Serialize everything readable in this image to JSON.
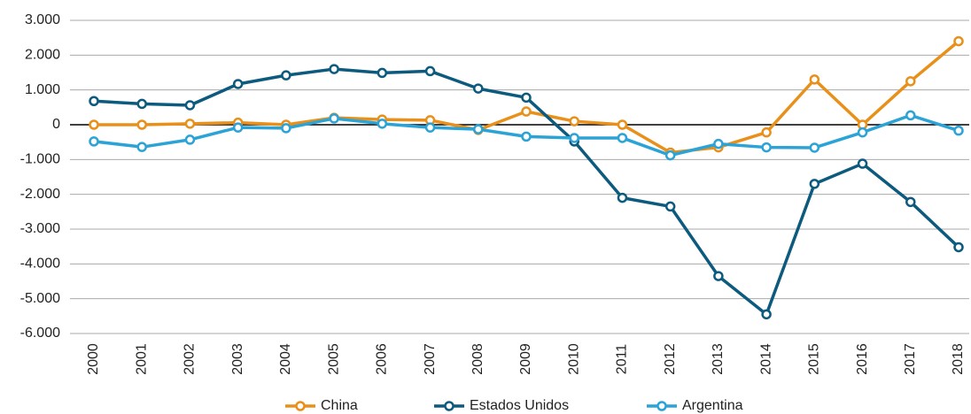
{
  "chart_data": {
    "type": "line",
    "categories": [
      "2000",
      "2001",
      "2002",
      "2003",
      "2004",
      "2005",
      "2006",
      "2007",
      "2008",
      "2009",
      "2010",
      "2011",
      "2012",
      "2013",
      "2014",
      "2015",
      "2016",
      "2017",
      "2018"
    ],
    "series": [
      {
        "name": "China",
        "color": "#e8901a",
        "values": [
          0,
          0,
          30,
          60,
          0,
          200,
          150,
          130,
          -150,
          380,
          100,
          0,
          -800,
          -650,
          -220,
          1300,
          0,
          1250,
          2400
        ]
      },
      {
        "name": "Estados Unidos",
        "color": "#0c5a7e",
        "values": [
          680,
          600,
          560,
          1170,
          1420,
          1600,
          1490,
          1540,
          1040,
          780,
          -480,
          -2100,
          -2350,
          -4350,
          -5450,
          -1700,
          -1120,
          -2220,
          -3520
        ]
      },
      {
        "name": "Argentina",
        "color": "#2ba3d6",
        "values": [
          -480,
          -640,
          -430,
          -80,
          -100,
          180,
          30,
          -80,
          -130,
          -340,
          -380,
          -380,
          -880,
          -550,
          -650,
          -660,
          -220,
          270,
          -170
        ]
      }
    ],
    "ylim": [
      -6000,
      3000
    ],
    "yticks": [
      {
        "value": -6000,
        "label": "-6.000"
      },
      {
        "value": -5000,
        "label": "-5.000"
      },
      {
        "value": -4000,
        "label": "-4.000"
      },
      {
        "value": -3000,
        "label": "-3.000"
      },
      {
        "value": -2000,
        "label": "-2.000"
      },
      {
        "value": -1000,
        "label": "-1.000"
      },
      0,
      {
        "value": 1000,
        "label": "1.000"
      },
      {
        "value": 2000,
        "label": "2.000"
      },
      {
        "value": 3000,
        "label": "3.000"
      }
    ],
    "grid": true,
    "legend": "bottom"
  }
}
